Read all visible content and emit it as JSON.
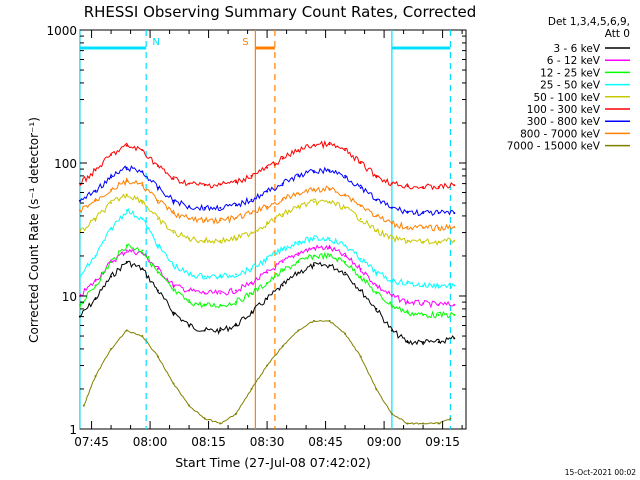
{
  "chart_data": {
    "type": "line",
    "title": "RHESSI Observing Summary Count Rates, Corrected",
    "xlabel": "Start Time (27-Jul-08 07:42:02)",
    "ylabel": "Corrected Count Rate (s⁻¹ detector⁻¹)",
    "y_scale": "log",
    "ylim": [
      1,
      1000
    ],
    "xlim": [
      "07:42:02",
      "09:21:00"
    ],
    "x_ticks": [
      "07:45",
      "08:00",
      "08:15",
      "08:30",
      "08:45",
      "09:00",
      "09:15"
    ],
    "y_ticks": [
      "1",
      "10",
      "100",
      "1000"
    ],
    "grid": false,
    "footer": "15-Oct-2021 00:02",
    "legend": {
      "header": [
        "Det 1,3,4,5,6,9,",
        "Att 0"
      ],
      "position": "top-right",
      "entries": [
        {
          "label": "3 - 6 keV",
          "color": "#000000"
        },
        {
          "label": "6 - 12 keV",
          "color": "#ff00ff"
        },
        {
          "label": "12 - 25 keV",
          "color": "#00ff00"
        },
        {
          "label": "25 - 50 keV",
          "color": "#00ffff"
        },
        {
          "label": "50 - 100 keV",
          "color": "#c8c800"
        },
        {
          "label": "100 - 300 keV",
          "color": "#ff0000"
        },
        {
          "label": "300 - 800 keV",
          "color": "#0000ff"
        },
        {
          "label": "800 - 7000 keV",
          "color": "#ff8000"
        },
        {
          "label": "7000 - 15000 keV",
          "color": "#808000"
        }
      ]
    },
    "series": [
      {
        "name": "3 - 6 keV",
        "color": "#000000",
        "x": [
          "07:42",
          "07:46",
          "07:50",
          "07:54",
          "07:58",
          "08:02",
          "08:06",
          "08:10",
          "08:14",
          "08:18",
          "08:22",
          "08:26",
          "08:30",
          "08:34",
          "08:38",
          "08:42",
          "08:46",
          "08:50",
          "08:54",
          "08:58",
          "09:02",
          "09:06",
          "09:10",
          "09:14",
          "09:18"
        ],
        "y": [
          7,
          9.5,
          14,
          18,
          16,
          11,
          7.5,
          6,
          5.5,
          5.5,
          6,
          7.5,
          9.5,
          12,
          15,
          17,
          17,
          15,
          11,
          8,
          5.5,
          4.5,
          4.5,
          4.5,
          4.8
        ]
      },
      {
        "name": "6 - 12 keV",
        "color": "#ff00ff",
        "x": [
          "07:42",
          "07:46",
          "07:50",
          "07:54",
          "07:58",
          "08:02",
          "08:06",
          "08:10",
          "08:14",
          "08:18",
          "08:22",
          "08:26",
          "08:30",
          "08:34",
          "08:38",
          "08:42",
          "08:46",
          "08:50",
          "08:54",
          "08:58",
          "09:02",
          "09:06",
          "09:10",
          "09:14",
          "09:18"
        ],
        "y": [
          10,
          13,
          18,
          22,
          21,
          16,
          12,
          11,
          10.5,
          10.5,
          11,
          12.5,
          15,
          18,
          21,
          23,
          23,
          20,
          16,
          12,
          10,
          9,
          8.8,
          8.6,
          8.6
        ]
      },
      {
        "name": "12 - 25 keV",
        "color": "#00ff00",
        "x": [
          "07:42",
          "07:46",
          "07:50",
          "07:54",
          "07:58",
          "08:02",
          "08:06",
          "08:10",
          "08:14",
          "08:18",
          "08:22",
          "08:26",
          "08:30",
          "08:34",
          "08:38",
          "08:42",
          "08:46",
          "08:50",
          "08:54",
          "08:58",
          "09:02",
          "09:06",
          "09:10",
          "09:14",
          "09:18"
        ],
        "y": [
          8.5,
          12,
          18,
          24,
          22,
          15,
          11,
          9,
          8.5,
          8.5,
          9,
          10.5,
          12.5,
          15.5,
          18,
          20,
          20,
          18,
          14,
          10.5,
          8.5,
          7.5,
          7.2,
          7.2,
          7.2
        ]
      },
      {
        "name": "25 - 50 keV",
        "color": "#00ffff",
        "x": [
          "07:42",
          "07:46",
          "07:50",
          "07:54",
          "07:58",
          "08:02",
          "08:06",
          "08:10",
          "08:14",
          "08:18",
          "08:22",
          "08:26",
          "08:30",
          "08:34",
          "08:38",
          "08:42",
          "08:46",
          "08:50",
          "08:54",
          "08:58",
          "09:02",
          "09:06",
          "09:10",
          "09:14",
          "09:18"
        ],
        "y": [
          14,
          20,
          32,
          44,
          38,
          24,
          17,
          14.5,
          14,
          14,
          14.5,
          16,
          19,
          22.5,
          25.5,
          27,
          27,
          24,
          19,
          15,
          13,
          12.5,
          12,
          12,
          12
        ]
      },
      {
        "name": "50 - 100 keV",
        "color": "#c8c800",
        "x": [
          "07:42",
          "07:46",
          "07:50",
          "07:54",
          "07:58",
          "08:02",
          "08:06",
          "08:10",
          "08:14",
          "08:18",
          "08:22",
          "08:26",
          "08:30",
          "08:34",
          "08:38",
          "08:42",
          "08:46",
          "08:50",
          "08:54",
          "08:58",
          "09:02",
          "09:06",
          "09:10",
          "09:14",
          "09:18"
        ],
        "y": [
          30,
          38,
          50,
          58,
          52,
          38,
          30,
          27,
          26,
          26,
          27,
          30,
          35,
          41,
          47,
          51,
          51,
          46,
          38,
          31,
          27,
          26,
          25.5,
          25.5,
          26
        ]
      },
      {
        "name": "100 - 300 keV",
        "color": "#ff0000",
        "x": [
          "07:42",
          "07:46",
          "07:50",
          "07:54",
          "07:58",
          "08:02",
          "08:06",
          "08:10",
          "08:14",
          "08:18",
          "08:22",
          "08:26",
          "08:30",
          "08:34",
          "08:38",
          "08:42",
          "08:46",
          "08:50",
          "08:54",
          "08:58",
          "09:02",
          "09:06",
          "09:10",
          "09:14",
          "09:18"
        ],
        "y": [
          70,
          88,
          115,
          135,
          125,
          95,
          76,
          70,
          68,
          69,
          72,
          80,
          92,
          108,
          125,
          137,
          138,
          125,
          100,
          80,
          70,
          67,
          66,
          66,
          68
        ]
      },
      {
        "name": "300 - 800 keV",
        "color": "#0000ff",
        "x": [
          "07:42",
          "07:46",
          "07:50",
          "07:54",
          "07:58",
          "08:02",
          "08:06",
          "08:10",
          "08:14",
          "08:18",
          "08:22",
          "08:26",
          "08:30",
          "08:34",
          "08:38",
          "08:42",
          "08:46",
          "08:50",
          "08:54",
          "08:58",
          "09:02",
          "09:06",
          "09:10",
          "09:14",
          "09:18"
        ],
        "y": [
          52,
          62,
          78,
          92,
          86,
          65,
          52,
          47,
          46,
          46,
          48,
          53,
          61,
          70,
          80,
          87,
          88,
          80,
          65,
          53,
          46,
          43,
          42,
          42,
          42
        ]
      },
      {
        "name": "800 - 7000 keV",
        "color": "#ff8000",
        "x": [
          "07:42",
          "07:46",
          "07:50",
          "07:54",
          "07:58",
          "08:02",
          "08:06",
          "08:10",
          "08:14",
          "08:18",
          "08:22",
          "08:26",
          "08:30",
          "08:34",
          "08:38",
          "08:42",
          "08:46",
          "08:50",
          "08:54",
          "08:58",
          "09:02",
          "09:06",
          "09:10",
          "09:14",
          "09:18"
        ],
        "y": [
          44,
          52,
          63,
          73,
          68,
          52,
          42,
          38,
          37,
          37,
          38.5,
          42,
          47,
          53,
          59,
          63,
          64,
          58,
          48,
          40,
          35,
          33,
          32.5,
          32.5,
          33
        ]
      },
      {
        "name": "7000 - 15000 keV",
        "color": "#808000",
        "x": [
          "07:43",
          "07:46",
          "07:50",
          "07:54",
          "07:58",
          "08:02",
          "08:06",
          "08:10",
          "08:14",
          "08:18",
          "08:22",
          "08:26",
          "08:30",
          "08:34",
          "08:38",
          "08:42",
          "08:46",
          "08:50",
          "08:54",
          "08:58",
          "09:02",
          "09:06",
          "09:10",
          "09:14",
          "09:17"
        ],
        "y": [
          1.5,
          2.5,
          4,
          5.5,
          5,
          3.5,
          2.2,
          1.5,
          1.2,
          1.1,
          1.3,
          2,
          3,
          4.2,
          5.5,
          6.5,
          6.5,
          5.2,
          3.5,
          2,
          1.3,
          1.1,
          1.1,
          1.1,
          1.2
        ]
      }
    ],
    "state_bars": [
      {
        "label": "N",
        "color": "#00e0ff",
        "segments": [
          [
            "07:42",
            "07:59"
          ],
          [
            "09:02",
            "09:17"
          ]
        ]
      },
      {
        "label": "S",
        "color": "#ff8000",
        "segments": [
          [
            "08:27",
            "08:32"
          ]
        ]
      }
    ],
    "vertical_markers": [
      {
        "x": "07:42",
        "color": "#00e0ff",
        "style": "solid"
      },
      {
        "x": "07:59",
        "color": "#00e0ff",
        "style": "dashed"
      },
      {
        "x": "08:27",
        "color": "#ff8000",
        "style": "solid"
      },
      {
        "x": "08:32",
        "color": "#ff8000",
        "style": "dashed"
      },
      {
        "x": "09:02",
        "color": "#00e0ff",
        "style": "solid"
      },
      {
        "x": "09:17",
        "color": "#00e0ff",
        "style": "dashed"
      }
    ]
  }
}
